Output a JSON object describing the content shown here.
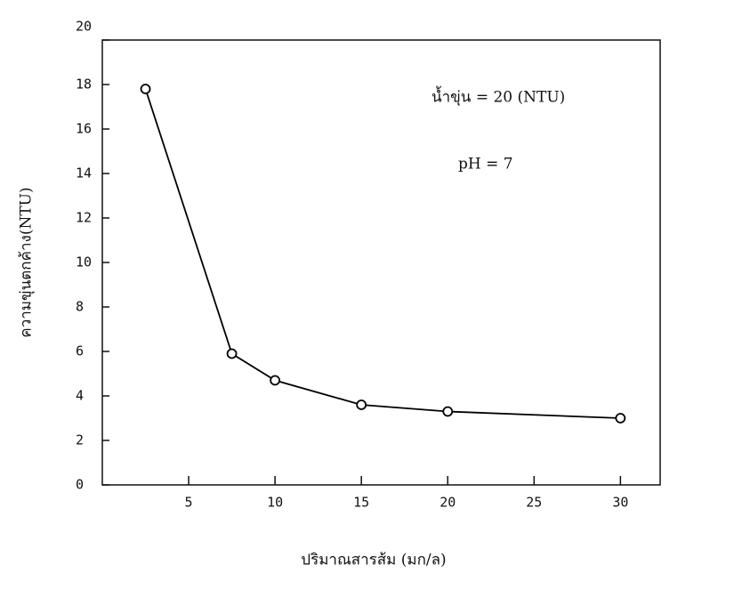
{
  "chart_data": {
    "type": "line",
    "x_label": "ปริมาณสารส้ม  (มก/ล)",
    "y_label": "ความขุ่นตกค้าง(NTU)",
    "annotations": [
      "น้ำขุ่น  =  20  (NTU)",
      "pH  =  7"
    ],
    "x": [
      2.5,
      7.5,
      10,
      15,
      20,
      30
    ],
    "series": [
      {
        "color": "#000000",
        "values": [
          17.8,
          5.9,
          4.7,
          3.6,
          3.3,
          3.0
        ]
      }
    ],
    "xlim": [
      0,
      32.3
    ],
    "xticks": [
      5,
      10,
      15,
      20,
      25,
      30
    ],
    "ylim": [
      0,
      20
    ],
    "yticks": [
      0,
      2,
      4,
      6,
      8,
      10,
      12,
      14,
      16,
      18,
      20
    ],
    "grid": false
  }
}
